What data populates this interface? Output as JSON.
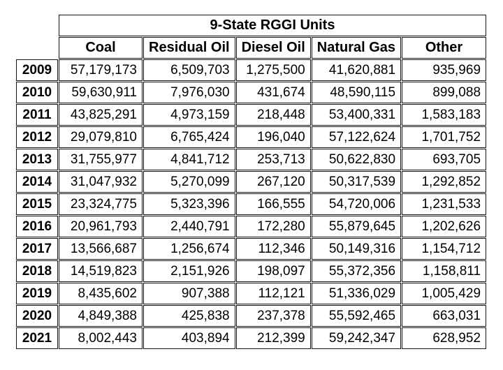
{
  "table": {
    "title": "9-State RGGI Units",
    "columns": [
      "Coal",
      "Residual Oil",
      "Diesel Oil",
      "Natural Gas",
      "Other"
    ],
    "rows": [
      {
        "year": "2009",
        "values": [
          "57,179,173",
          "6,509,703",
          "1,275,500",
          "41,620,881",
          "935,969"
        ]
      },
      {
        "year": "2010",
        "values": [
          "59,630,911",
          "7,976,030",
          "431,674",
          "48,590,115",
          "899,088"
        ]
      },
      {
        "year": "2011",
        "values": [
          "43,825,291",
          "4,973,159",
          "218,448",
          "53,400,331",
          "1,583,183"
        ]
      },
      {
        "year": "2012",
        "values": [
          "29,079,810",
          "6,765,424",
          "196,040",
          "57,122,624",
          "1,701,752"
        ]
      },
      {
        "year": "2013",
        "values": [
          "31,755,977",
          "4,841,712",
          "253,713",
          "50,622,830",
          "693,705"
        ]
      },
      {
        "year": "2014",
        "values": [
          "31,047,932",
          "5,270,099",
          "267,120",
          "50,317,539",
          "1,292,852"
        ]
      },
      {
        "year": "2015",
        "values": [
          "23,324,775",
          "5,323,396",
          "166,555",
          "54,720,006",
          "1,231,533"
        ]
      },
      {
        "year": "2016",
        "values": [
          "20,961,793",
          "2,440,791",
          "172,280",
          "55,879,645",
          "1,202,626"
        ]
      },
      {
        "year": "2017",
        "values": [
          "13,566,687",
          "1,256,674",
          "112,346",
          "50,149,316",
          "1,154,712"
        ]
      },
      {
        "year": "2018",
        "values": [
          "14,519,823",
          "2,151,926",
          "198,097",
          "55,372,356",
          "1,158,811"
        ]
      },
      {
        "year": "2019",
        "values": [
          "8,435,602",
          "907,388",
          "112,121",
          "51,336,029",
          "1,005,429"
        ]
      },
      {
        "year": "2020",
        "values": [
          "4,849,388",
          "425,838",
          "237,378",
          "55,592,465",
          "663,031"
        ]
      },
      {
        "year": "2021",
        "values": [
          "8,002,443",
          "403,894",
          "212,399",
          "59,242,347",
          "628,952"
        ]
      }
    ]
  },
  "chart_data": {
    "type": "table",
    "title": "9-State RGGI Units",
    "categories": [
      2009,
      2010,
      2011,
      2012,
      2013,
      2014,
      2015,
      2016,
      2017,
      2018,
      2019,
      2020,
      2021
    ],
    "series": [
      {
        "name": "Coal",
        "values": [
          57179173,
          59630911,
          43825291,
          29079810,
          31755977,
          31047932,
          23324775,
          20961793,
          13566687,
          14519823,
          8435602,
          4849388,
          8002443
        ]
      },
      {
        "name": "Residual Oil",
        "values": [
          6509703,
          7976030,
          4973159,
          6765424,
          4841712,
          5270099,
          5323396,
          2440791,
          1256674,
          2151926,
          907388,
          425838,
          403894
        ]
      },
      {
        "name": "Diesel Oil",
        "values": [
          1275500,
          431674,
          218448,
          196040,
          253713,
          267120,
          166555,
          172280,
          112346,
          198097,
          112121,
          237378,
          212399
        ]
      },
      {
        "name": "Natural Gas",
        "values": [
          41620881,
          48590115,
          53400331,
          57122624,
          50622830,
          50317539,
          54720006,
          55879645,
          50149316,
          55372356,
          51336029,
          55592465,
          59242347
        ]
      },
      {
        "name": "Other",
        "values": [
          935969,
          899088,
          1583183,
          1701752,
          693705,
          1292852,
          1231533,
          1202626,
          1154712,
          1158811,
          1005429,
          663031,
          628952
        ]
      }
    ],
    "layout": {
      "grid": true,
      "header_row": true,
      "year_column_bold": true,
      "numbers_right_aligned": true
    }
  },
  "colors": {
    "background": "#ffffff",
    "border": "#141414",
    "text": "#000000"
  }
}
